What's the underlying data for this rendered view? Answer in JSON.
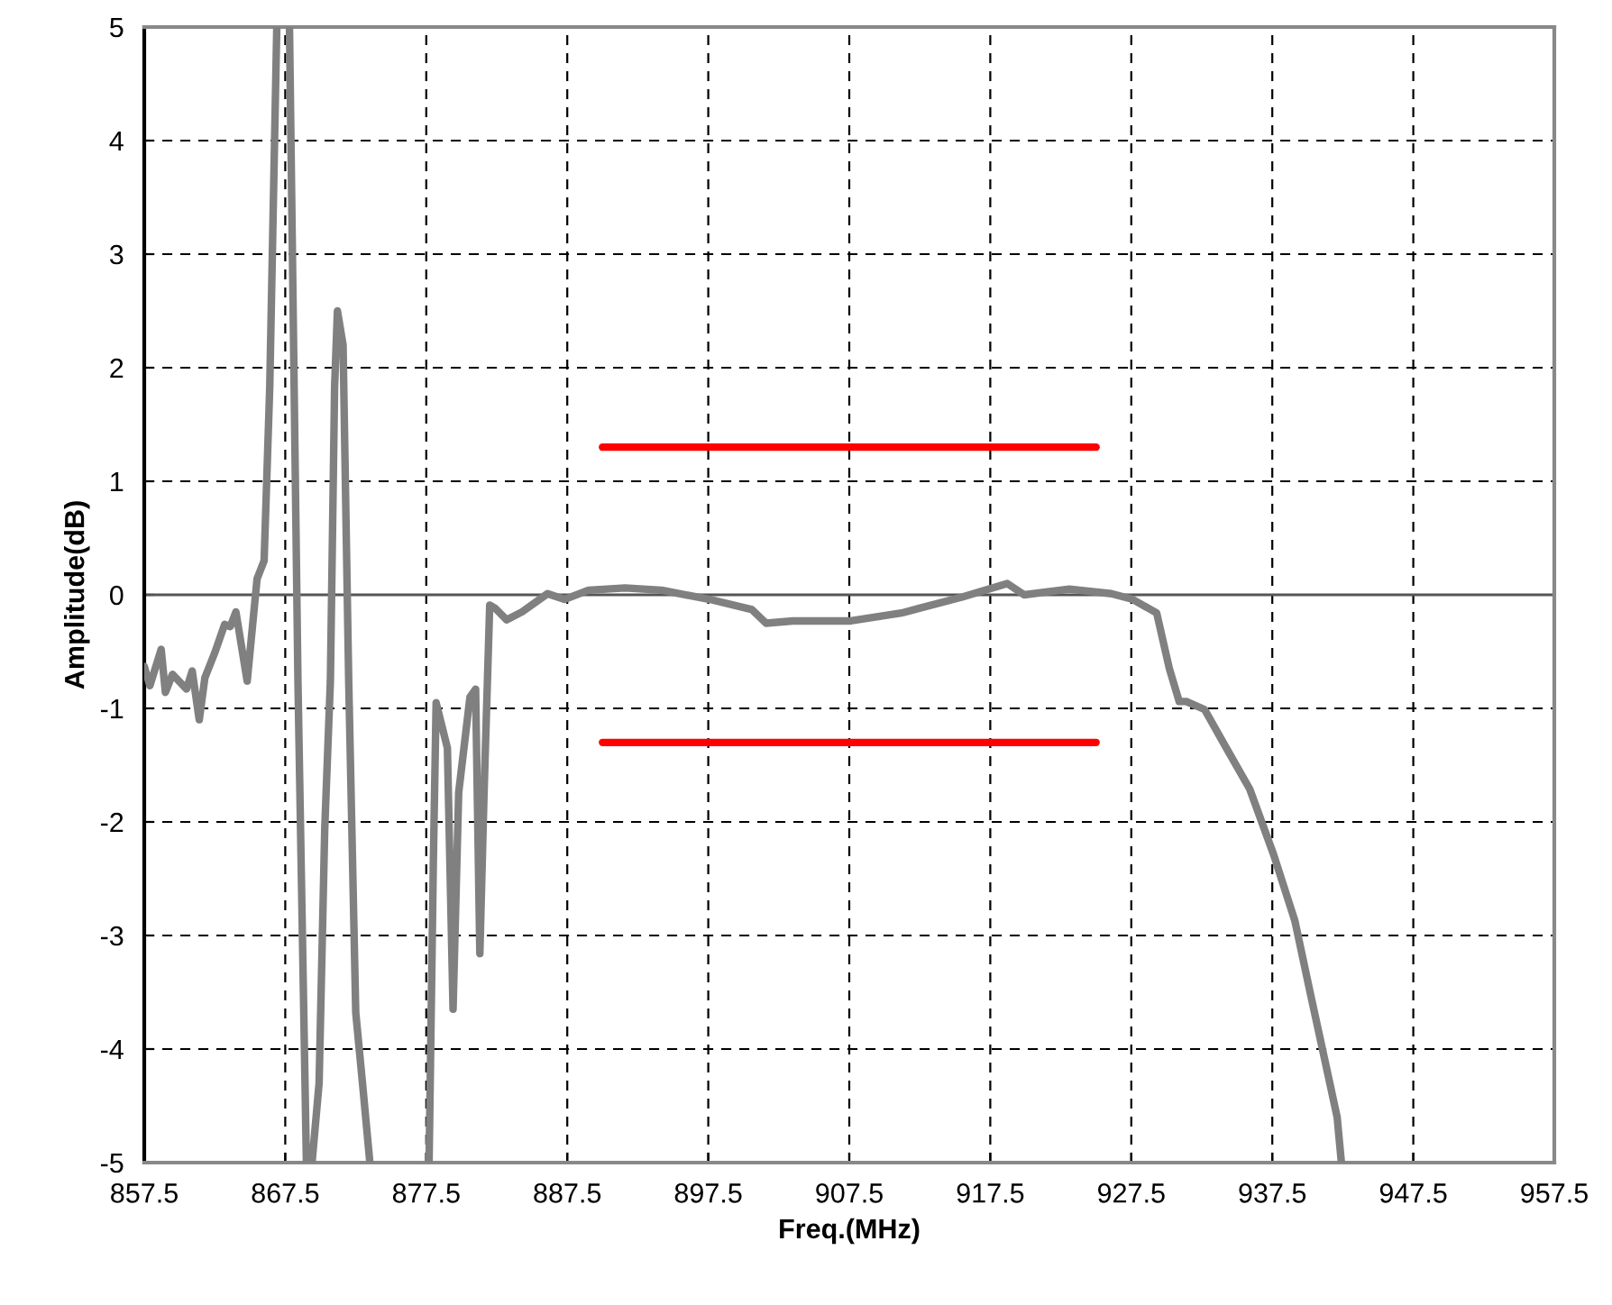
{
  "chart_data": {
    "type": "line",
    "xlabel": "Freq.(MHz)",
    "ylabel": "Amplitude(dB)",
    "xlim": [
      857.5,
      957.5
    ],
    "xticks": [
      857.5,
      867.5,
      877.5,
      887.5,
      897.5,
      907.5,
      917.5,
      927.5,
      937.5,
      947.5,
      957.5
    ],
    "ylim": [
      -5,
      5
    ],
    "yticks": [
      -5,
      -4,
      -3,
      -2,
      -1,
      0,
      1,
      2,
      3,
      4,
      5
    ],
    "grid": true,
    "legend": false,
    "marker": "none",
    "line_style": "solid",
    "ref_lines": [
      {
        "axis": "y",
        "value": 0,
        "color": "#555555",
        "line_style": "solid"
      }
    ],
    "series": [
      {
        "color": "#808080",
        "x": [
          857.5,
          857.9,
          858.7,
          859.0,
          859.5,
          860.5,
          860.9,
          861.4,
          861.8,
          862.5,
          863.2,
          863.6,
          864.0,
          864.8,
          865.5,
          866.0,
          866.4,
          866.9,
          null,
          867.8,
          868.4,
          869.0,
          null,
          869.4,
          869.9,
          870.3,
          870.7,
          871.0,
          871.2,
          871.6,
          872.0,
          872.5,
          873.0,
          873.5,
          null,
          877.7,
          878.0,
          878.2,
          879.0,
          879.4,
          879.8,
          880.6,
          881.0,
          881.3,
          881.6,
          882.0,
          882.4,
          883.2,
          884.3,
          886.1,
          887.3,
          889.0,
          891.6,
          894.2,
          897.6,
          900.6,
          901.6,
          903.5,
          907.6,
          911.2,
          915.5,
          918.7,
          919.9,
          923.1,
          926.1,
          927.6,
          929.3,
          930.2,
          930.9,
          931.4,
          932.7,
          934.2,
          935.9,
          937.6,
          939.1,
          940.2,
          941.3,
          942.1,
          942.4
        ],
        "values": [
          -0.63,
          -0.8,
          -0.48,
          -0.86,
          -0.7,
          -0.83,
          -0.67,
          -1.1,
          -0.73,
          -0.51,
          -0.26,
          -0.28,
          -0.15,
          -0.76,
          0.14,
          0.3,
          1.83,
          5,
          null,
          5,
          -0.76,
          -5,
          null,
          -5,
          -4.3,
          -2.06,
          -0.76,
          1.83,
          2.5,
          2.2,
          -0.76,
          -3.68,
          -4.33,
          -5,
          null,
          -5,
          -2.37,
          -0.95,
          -1.35,
          -3.65,
          -1.74,
          -0.9,
          -0.83,
          -3.16,
          -1.74,
          -0.09,
          -0.12,
          -0.22,
          -0.15,
          0.01,
          -0.04,
          0.04,
          0.06,
          0.04,
          -0.04,
          -0.13,
          -0.25,
          -0.23,
          -0.23,
          -0.16,
          -0.02,
          0.1,
          0.0,
          0.05,
          0.01,
          -0.04,
          -0.16,
          -0.65,
          -0.94,
          -0.94,
          -1.01,
          -1.34,
          -1.71,
          -2.29,
          -2.87,
          -3.51,
          -4.14,
          -4.6,
          -5
        ]
      },
      {
        "color": "#ff0000",
        "x": [
          890,
          925
        ],
        "values": [
          1.3,
          1.3
        ]
      },
      {
        "color": "#ff0000",
        "x": [
          890,
          925
        ],
        "values": [
          -1.3,
          -1.3
        ]
      }
    ]
  }
}
